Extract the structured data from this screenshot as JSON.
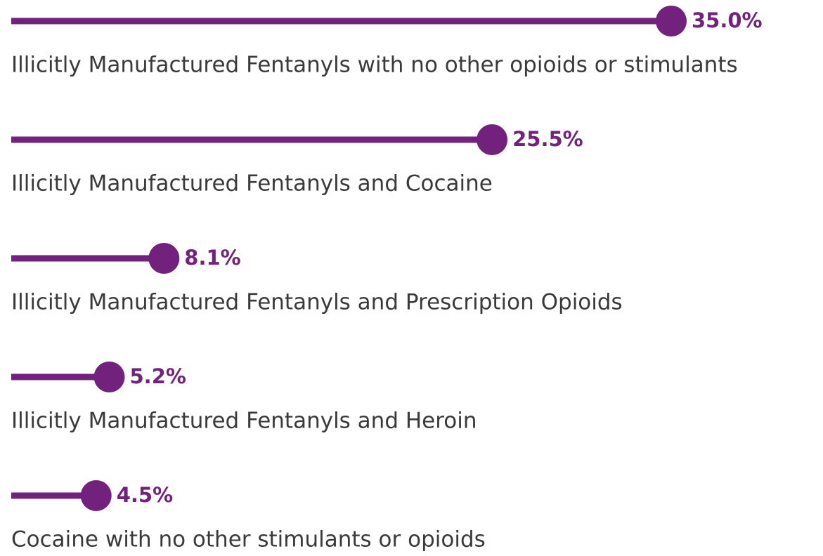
{
  "chart_data": {
    "type": "lollipop",
    "color": "#72217c",
    "categories": [
      "Illicitly Manufactured Fentanyls with no other opioids or stimulants",
      "Illicitly Manufactured Fentanyls and Cocaine",
      "Illicitly Manufactured Fentanyls and Prescription Opioids",
      "Illicitly Manufactured Fentanyls and Heroin",
      "Cocaine with no other stimulants or opioids"
    ],
    "values": [
      35.0,
      25.5,
      8.1,
      5.2,
      4.5
    ],
    "value_labels": [
      "35.0%",
      "25.5%",
      "8.1%",
      "5.2%",
      "4.5%"
    ]
  }
}
